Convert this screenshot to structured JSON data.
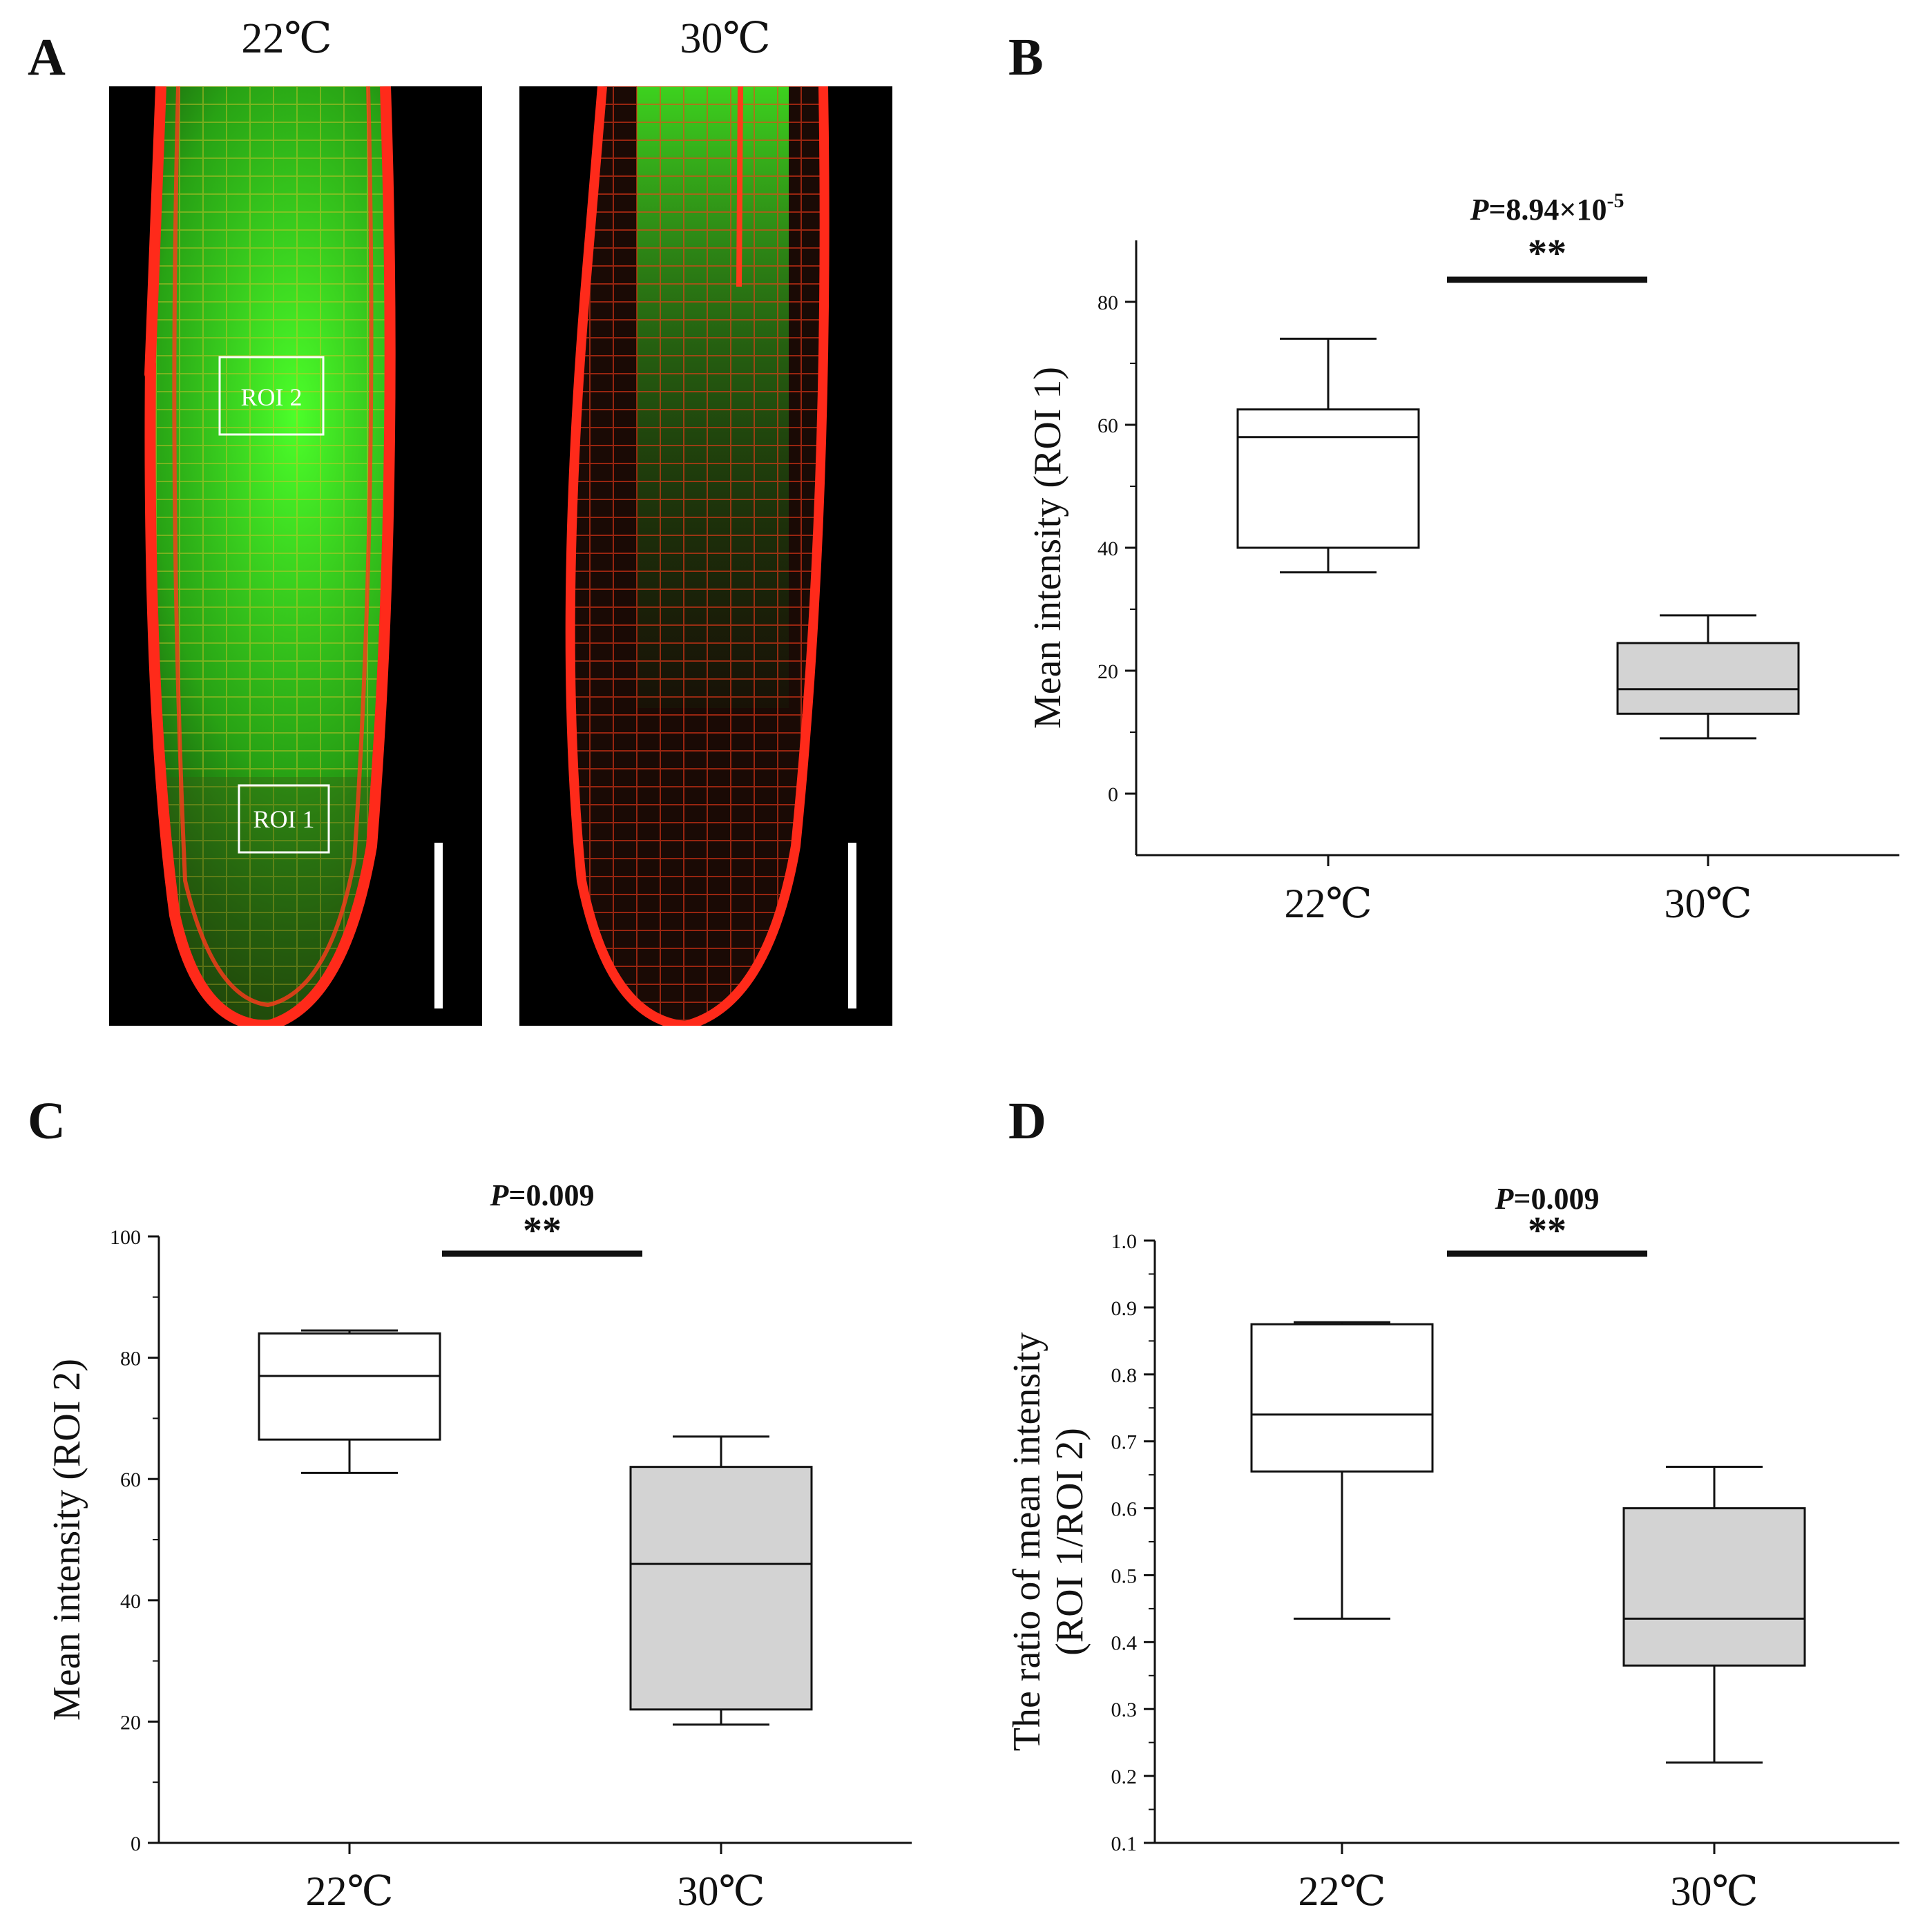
{
  "panel_labels": {
    "a": "A",
    "b": "B",
    "c": "C",
    "d": "D"
  },
  "micrographs": {
    "left_title": "22℃",
    "right_title": "30℃",
    "roi1_label": "ROI 1",
    "roi2_label": "ROI 2"
  },
  "colors": {
    "box_22": "#ffffff",
    "box_30": "#d3d3d3",
    "stroke": "#111111",
    "membrane_red": "#ff2a1a",
    "gfp_green": "#33e61a"
  },
  "chart_data": [
    {
      "panel": "B",
      "type": "box",
      "categories": [
        "22℃",
        "30℃"
      ],
      "ylabel": "Mean intensity (ROI 1)",
      "ylim": [
        -10,
        90
      ],
      "yticks": [
        0,
        20,
        40,
        60,
        80
      ],
      "boxes": [
        {
          "category": "22℃",
          "whisker_low": 36,
          "q1": 40,
          "median": 58,
          "q3": 62.5,
          "whisker_high": 74,
          "fill": "#ffffff"
        },
        {
          "category": "30℃",
          "whisker_low": 9,
          "q1": 13,
          "median": 17,
          "q3": 24.5,
          "whisker_high": 29,
          "fill": "#d3d3d3"
        }
      ],
      "significance": {
        "p_prefix": "P",
        "p_value": "=8.94×10",
        "p_exponent": "-5",
        "stars": "**"
      }
    },
    {
      "panel": "C",
      "type": "box",
      "categories": [
        "22℃",
        "30℃"
      ],
      "ylabel": "Mean intensity (ROI 2)",
      "ylim": [
        0,
        100
      ],
      "yticks": [
        0,
        20,
        40,
        60,
        80,
        100
      ],
      "boxes": [
        {
          "category": "22℃",
          "whisker_low": 61,
          "q1": 66.5,
          "median": 77,
          "q3": 84,
          "whisker_high": 84.5,
          "fill": "#ffffff"
        },
        {
          "category": "30℃",
          "whisker_low": 19.5,
          "q1": 22,
          "median": 46,
          "q3": 62,
          "whisker_high": 67,
          "fill": "#d3d3d3"
        }
      ],
      "significance": {
        "p_prefix": "P",
        "p_value": "=0.009",
        "p_exponent": "",
        "stars": "**"
      }
    },
    {
      "panel": "D",
      "type": "box",
      "categories": [
        "22℃",
        "30℃"
      ],
      "ylabel_line1": "The ratio of mean intensity",
      "ylabel_line2": "(ROI 1/ROI 2)",
      "ylim": [
        0.1,
        1.0
      ],
      "yticks": [
        "0.1",
        "0.2",
        "0.3",
        "0.4",
        "0.5",
        "0.6",
        "0.7",
        "0.8",
        "0.9",
        "1.0"
      ],
      "boxes": [
        {
          "category": "22℃",
          "whisker_low": 0.435,
          "q1": 0.655,
          "median": 0.74,
          "q3": 0.875,
          "whisker_high": 0.878,
          "fill": "#ffffff"
        },
        {
          "category": "30℃",
          "whisker_low": 0.22,
          "q1": 0.365,
          "median": 0.435,
          "q3": 0.6,
          "whisker_high": 0.662,
          "fill": "#d3d3d3"
        }
      ],
      "significance": {
        "p_prefix": "P",
        "p_value": "=0.009",
        "p_exponent": "",
        "stars": "**"
      }
    }
  ]
}
